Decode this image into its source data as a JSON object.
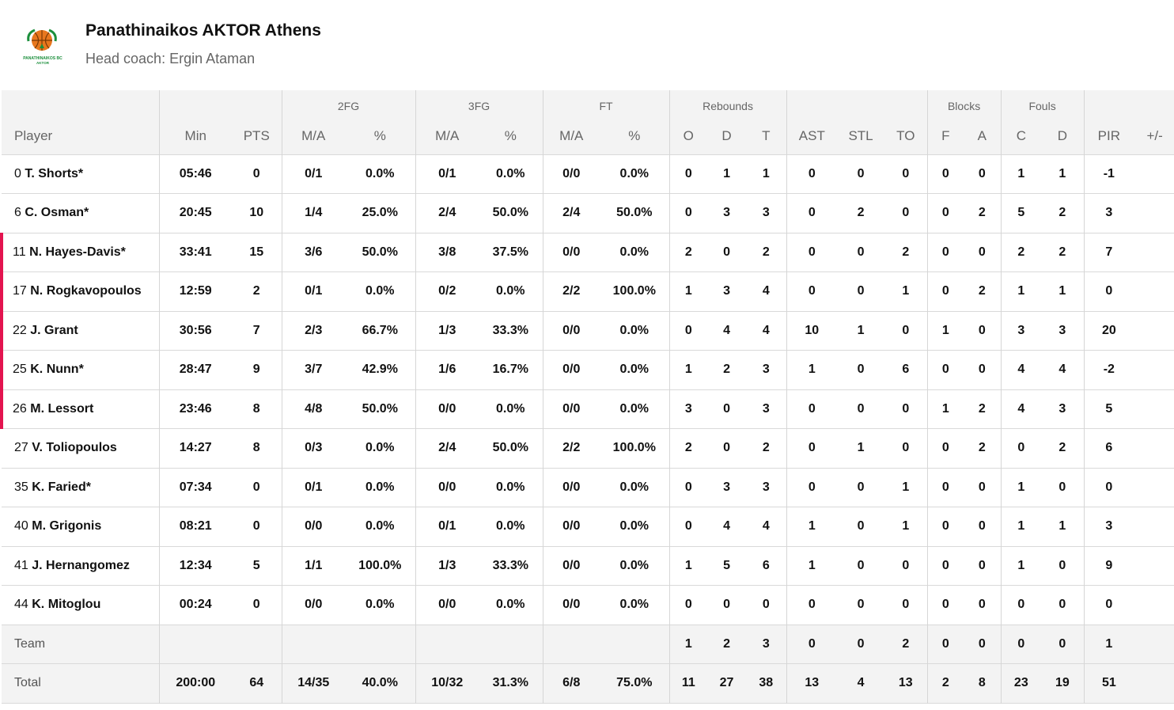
{
  "team": {
    "name": "Panathinaikos AKTOR Athens",
    "coach": "Head coach: Ergin Ataman",
    "logo_text_top": "PANATHINAIKOS BC",
    "logo_text_bottom": "AKTOR",
    "colors": {
      "logo_green": "#1c8f3c",
      "logo_orange": "#e8771e",
      "starter_marker": "#e3144f"
    }
  },
  "groups": {
    "fg2": "2FG",
    "fg3": "3FG",
    "ft": "FT",
    "rebounds": "Rebounds",
    "blocks": "Blocks",
    "fouls": "Fouls"
  },
  "columns": [
    "Player",
    "Min",
    "PTS",
    "M/A",
    "%",
    "M/A",
    "%",
    "M/A",
    "%",
    "O",
    "D",
    "T",
    "AST",
    "STL",
    "TO",
    "F",
    "A",
    "C",
    "D",
    "PIR",
    "+/-"
  ],
  "players": [
    {
      "num": "0",
      "name": "T. Shorts*",
      "starter": false,
      "stats": [
        "05:46",
        "0",
        "0/1",
        "0.0%",
        "0/1",
        "0.0%",
        "0/0",
        "0.0%",
        "0",
        "1",
        "1",
        "0",
        "0",
        "0",
        "0",
        "0",
        "1",
        "1",
        "-1",
        ""
      ]
    },
    {
      "num": "6",
      "name": "C. Osman*",
      "starter": false,
      "stats": [
        "20:45",
        "10",
        "1/4",
        "25.0%",
        "2/4",
        "50.0%",
        "2/4",
        "50.0%",
        "0",
        "3",
        "3",
        "0",
        "2",
        "0",
        "0",
        "2",
        "5",
        "2",
        "3",
        ""
      ]
    },
    {
      "num": "11",
      "name": "N. Hayes-Davis*",
      "starter": true,
      "stats": [
        "33:41",
        "15",
        "3/6",
        "50.0%",
        "3/8",
        "37.5%",
        "0/0",
        "0.0%",
        "2",
        "0",
        "2",
        "0",
        "0",
        "2",
        "0",
        "0",
        "2",
        "2",
        "7",
        ""
      ]
    },
    {
      "num": "17",
      "name": "N. Rogkavopoulos",
      "starter": true,
      "stats": [
        "12:59",
        "2",
        "0/1",
        "0.0%",
        "0/2",
        "0.0%",
        "2/2",
        "100.0%",
        "1",
        "3",
        "4",
        "0",
        "0",
        "1",
        "0",
        "2",
        "1",
        "1",
        "0",
        ""
      ]
    },
    {
      "num": "22",
      "name": "J. Grant",
      "starter": true,
      "stats": [
        "30:56",
        "7",
        "2/3",
        "66.7%",
        "1/3",
        "33.3%",
        "0/0",
        "0.0%",
        "0",
        "4",
        "4",
        "10",
        "1",
        "0",
        "1",
        "0",
        "3",
        "3",
        "20",
        ""
      ]
    },
    {
      "num": "25",
      "name": "K. Nunn*",
      "starter": true,
      "stats": [
        "28:47",
        "9",
        "3/7",
        "42.9%",
        "1/6",
        "16.7%",
        "0/0",
        "0.0%",
        "1",
        "2",
        "3",
        "1",
        "0",
        "6",
        "0",
        "0",
        "4",
        "4",
        "-2",
        ""
      ]
    },
    {
      "num": "26",
      "name": "M. Lessort",
      "starter": true,
      "stats": [
        "23:46",
        "8",
        "4/8",
        "50.0%",
        "0/0",
        "0.0%",
        "0/0",
        "0.0%",
        "3",
        "0",
        "3",
        "0",
        "0",
        "0",
        "1",
        "2",
        "4",
        "3",
        "5",
        ""
      ]
    },
    {
      "num": "27",
      "name": "V. Toliopoulos",
      "starter": false,
      "stats": [
        "14:27",
        "8",
        "0/3",
        "0.0%",
        "2/4",
        "50.0%",
        "2/2",
        "100.0%",
        "2",
        "0",
        "2",
        "0",
        "1",
        "0",
        "0",
        "2",
        "0",
        "2",
        "6",
        ""
      ]
    },
    {
      "num": "35",
      "name": "K. Faried*",
      "starter": false,
      "stats": [
        "07:34",
        "0",
        "0/1",
        "0.0%",
        "0/0",
        "0.0%",
        "0/0",
        "0.0%",
        "0",
        "3",
        "3",
        "0",
        "0",
        "1",
        "0",
        "0",
        "1",
        "0",
        "0",
        ""
      ]
    },
    {
      "num": "40",
      "name": "M. Grigonis",
      "starter": false,
      "stats": [
        "08:21",
        "0",
        "0/0",
        "0.0%",
        "0/1",
        "0.0%",
        "0/0",
        "0.0%",
        "0",
        "4",
        "4",
        "1",
        "0",
        "1",
        "0",
        "0",
        "1",
        "1",
        "3",
        ""
      ]
    },
    {
      "num": "41",
      "name": "J. Hernangomez",
      "starter": false,
      "stats": [
        "12:34",
        "5",
        "1/1",
        "100.0%",
        "1/3",
        "33.3%",
        "0/0",
        "0.0%",
        "1",
        "5",
        "6",
        "1",
        "0",
        "0",
        "0",
        "0",
        "1",
        "0",
        "9",
        ""
      ]
    },
    {
      "num": "44",
      "name": "K. Mitoglou",
      "starter": false,
      "stats": [
        "00:24",
        "0",
        "0/0",
        "0.0%",
        "0/0",
        "0.0%",
        "0/0",
        "0.0%",
        "0",
        "0",
        "0",
        "0",
        "0",
        "0",
        "0",
        "0",
        "0",
        "0",
        "0",
        ""
      ]
    }
  ],
  "team_row": {
    "label": "Team",
    "stats": [
      "",
      "",
      "",
      "",
      "",
      "",
      "",
      "",
      "1",
      "2",
      "3",
      "0",
      "0",
      "2",
      "0",
      "0",
      "0",
      "0",
      "1",
      ""
    ]
  },
  "total_row": {
    "label": "Total",
    "stats": [
      "200:00",
      "64",
      "14/35",
      "40.0%",
      "10/32",
      "31.3%",
      "6/8",
      "75.0%",
      "11",
      "27",
      "38",
      "13",
      "4",
      "13",
      "2",
      "8",
      "23",
      "19",
      "51",
      ""
    ]
  }
}
